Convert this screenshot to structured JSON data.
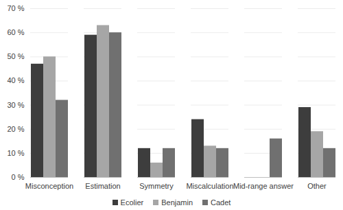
{
  "chart_data": {
    "type": "bar",
    "categories": [
      "Misconception",
      "Estimation",
      "Symmetry",
      "Miscalculation",
      "Mid-range answer",
      "Other"
    ],
    "series": [
      {
        "name": "Ecolier",
        "color": "#3d3d3d",
        "values": [
          47,
          59,
          12,
          24,
          null,
          29
        ]
      },
      {
        "name": "Benjamin",
        "color": "#a6a6a6",
        "values": [
          50,
          63,
          6,
          13,
          null,
          19
        ]
      },
      {
        "name": "Cadet",
        "color": "#707070",
        "values": [
          32,
          60,
          12,
          12,
          16,
          12
        ]
      }
    ],
    "ylim": [
      0,
      70
    ],
    "yticks": [
      {
        "value": 0,
        "label": "0 %"
      },
      {
        "value": 10,
        "label": "10 %"
      },
      {
        "value": 20,
        "label": "20 %"
      },
      {
        "value": 30,
        "label": "30 %"
      },
      {
        "value": 40,
        "label": "40 %"
      },
      {
        "value": 50,
        "label": "50 %"
      },
      {
        "value": 60,
        "label": "60 %"
      },
      {
        "value": 70,
        "label": "70 %"
      }
    ],
    "grid": true,
    "legend": "bottom"
  }
}
